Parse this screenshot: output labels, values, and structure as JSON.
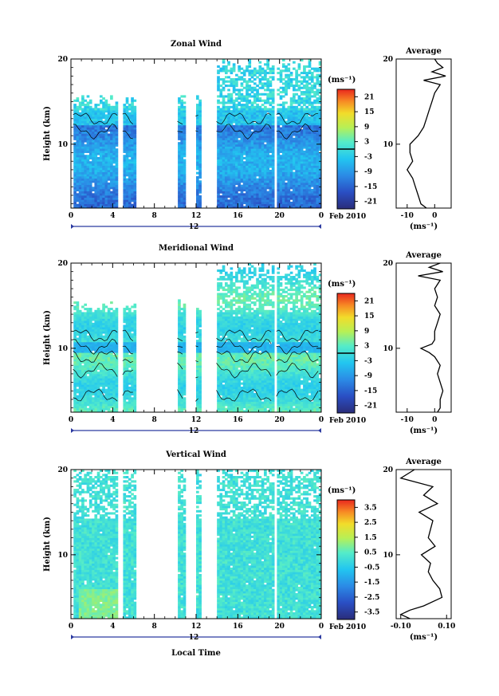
{
  "figure": {
    "date_label": "Feb 2010",
    "day_label": "12",
    "xlabel": "Local Time",
    "unit_label": "(ms⁻¹)",
    "average_title": "Average"
  },
  "chart_data": [
    {
      "type": "heatmap",
      "title": "Zonal Wind",
      "ylabel": "Height (km)",
      "xlabel": "Local Time",
      "xlim": [
        0,
        24
      ],
      "ylim": [
        2.5,
        20
      ],
      "x_ticks": [
        "0",
        "4",
        "8",
        "12",
        "16",
        "20",
        "0"
      ],
      "y_ticks": [
        10,
        20
      ],
      "colorbar": {
        "ticks": [
          "21",
          "15",
          "9",
          "3",
          "-3",
          "-9",
          "-15",
          "-21"
        ],
        "range": [
          -24,
          24
        ],
        "unit": "(ms⁻¹)",
        "marker": 0
      },
      "average_profile": {
        "x_ticks": [
          -10,
          0
        ],
        "xlim": [
          -14,
          6
        ],
        "heights": [
          2.5,
          3,
          4,
          5,
          6,
          7,
          8,
          9,
          10,
          11,
          12,
          13,
          14,
          15,
          16,
          17,
          17.5,
          18,
          18.5,
          19,
          19.5,
          20
        ],
        "values": [
          -3,
          -5,
          -6,
          -7,
          -8,
          -10,
          -8,
          -9,
          -9,
          -6,
          -4,
          -3,
          -2,
          -1,
          0,
          2,
          -4,
          4,
          -1,
          3,
          1,
          0
        ]
      }
    },
    {
      "type": "heatmap",
      "title": "Meridional Wind",
      "ylabel": "Height (km)",
      "xlabel": "Local Time",
      "xlim": [
        0,
        24
      ],
      "ylim": [
        2.5,
        20
      ],
      "x_ticks": [
        "0",
        "4",
        "8",
        "12",
        "16",
        "20",
        "0"
      ],
      "y_ticks": [
        10,
        20
      ],
      "colorbar": {
        "ticks": [
          "21",
          "15",
          "9",
          "3",
          "-3",
          "-9",
          "-15",
          "-21"
        ],
        "range": [
          -24,
          24
        ],
        "unit": "(ms⁻¹)",
        "marker": 0
      },
      "average_profile": {
        "x_ticks": [
          -10,
          0
        ],
        "xlim": [
          -14,
          6
        ],
        "heights": [
          2.5,
          3,
          4,
          5,
          6,
          7,
          8,
          9,
          9.5,
          10,
          10.5,
          11,
          12,
          13,
          14,
          15,
          16,
          17,
          18,
          18.5,
          19,
          19.5,
          20
        ],
        "values": [
          1,
          2,
          2,
          3,
          2,
          1,
          2,
          0,
          -2,
          -5,
          -1,
          0,
          0,
          1,
          2,
          0,
          1,
          0,
          2,
          -6,
          3,
          -2,
          2
        ]
      }
    },
    {
      "type": "heatmap",
      "title": "Vertical Wind",
      "ylabel": "Height (km)",
      "xlabel": "Local Time",
      "xlim": [
        0,
        24
      ],
      "ylim": [
        2.5,
        20
      ],
      "x_ticks": [
        "0",
        "4",
        "8",
        "12",
        "16",
        "20",
        "0"
      ],
      "y_ticks": [
        10,
        20
      ],
      "colorbar": {
        "ticks": [
          "3.5",
          "2.5",
          "1.5",
          "0.5",
          "-0.5",
          "-1.5",
          "-2.5",
          "-3.5"
        ],
        "range": [
          -4,
          4
        ],
        "unit": "(ms⁻¹)",
        "marker": null
      },
      "average_profile": {
        "x_ticks": [
          "-0.10",
          "0.10"
        ],
        "xlim": [
          -0.12,
          0.12
        ],
        "heights": [
          2.5,
          3,
          3.5,
          4,
          5,
          6,
          7,
          8,
          9,
          10,
          11,
          12,
          13,
          14,
          15,
          16,
          17,
          18,
          19,
          20
        ],
        "values": [
          -0.06,
          -0.1,
          -0.06,
          0.0,
          0.08,
          0.07,
          0.04,
          0.02,
          0.03,
          -0.01,
          0.05,
          0.02,
          0.03,
          0.04,
          -0.02,
          0.06,
          0.0,
          0.04,
          -0.1,
          -0.04
        ]
      }
    }
  ]
}
